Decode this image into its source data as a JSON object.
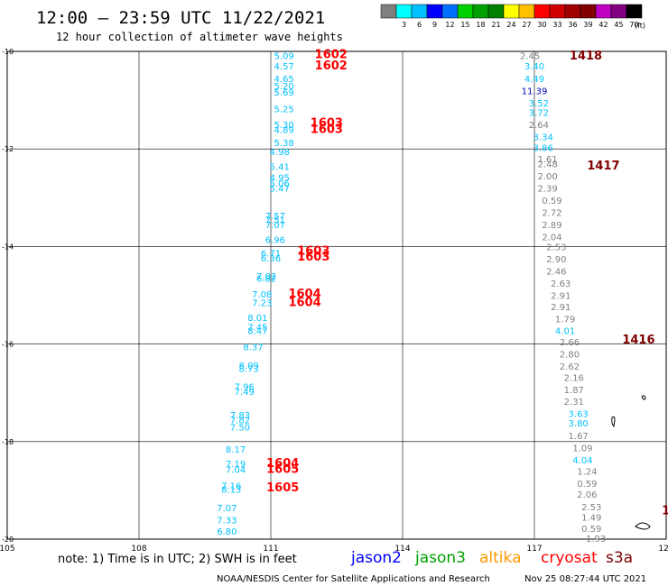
{
  "header": {
    "title": "12:00 – 23:59 UTC 11/22/2021",
    "subtitle": "12 hour collection of altimeter wave heights"
  },
  "legend": {
    "bins": [
      {
        "label": "",
        "color": "#7f7f7f"
      },
      {
        "label": "3",
        "color": "#00ffff"
      },
      {
        "label": "6",
        "color": "#00c0ff"
      },
      {
        "label": "9",
        "color": "#0000ff"
      },
      {
        "label": "12",
        "color": "#0070ff"
      },
      {
        "label": "15",
        "color": "#00d000"
      },
      {
        "label": "18",
        "color": "#00a000"
      },
      {
        "label": "21",
        "color": "#008000"
      },
      {
        "label": "24",
        "color": "#ffff00"
      },
      {
        "label": "27",
        "color": "#ffc000"
      },
      {
        "label": "30",
        "color": "#ff0000"
      },
      {
        "label": "33",
        "color": "#d00000"
      },
      {
        "label": "36",
        "color": "#a00000"
      },
      {
        "label": "39",
        "color": "#800000"
      },
      {
        "label": "42",
        "color": "#c000c0"
      },
      {
        "label": "45",
        "color": "#800080"
      },
      {
        "label": "70",
        "color": "#000000"
      }
    ],
    "unit": "(ft)"
  },
  "footer": {
    "note": "note:  1) Time is in UTC;  2) SWH is in feet",
    "satellites": [
      {
        "name": "jason2",
        "color": "#0000ff"
      },
      {
        "name": "jason3",
        "color": "#00a000"
      },
      {
        "name": "altika",
        "color": "#ff9900"
      },
      {
        "name": "cryosat",
        "color": "#ff0000"
      },
      {
        "name": "s3a",
        "color": "#800000"
      }
    ],
    "credit": "NOAA/NESDIS Center for Satellite Applications and Research",
    "timestamp": "Nov 25 08:27:44 UTC 2021"
  },
  "chart_data": {
    "type": "scatter",
    "xlim": [
      105,
      120
    ],
    "ylim": [
      -20,
      -10
    ],
    "xticks": [
      105,
      108,
      111,
      114,
      117,
      120
    ],
    "yticks": [
      -10,
      -12,
      -14,
      -16,
      -18,
      -20
    ],
    "xticklabels": [
      "105",
      "108",
      "111",
      "114",
      "117",
      "120"
    ],
    "yticklabels": [
      "-10",
      "-12",
      "-14",
      "-16",
      "-18",
      "-20"
    ],
    "grid": true,
    "series": [
      {
        "name": "jason3",
        "color": "#00c0ff",
        "points": [
          {
            "lon": 111.3,
            "lat": -10.08,
            "v": "5.09"
          },
          {
            "lon": 111.3,
            "lat": -10.3,
            "v": "4.57"
          },
          {
            "lon": 111.3,
            "lat": -10.55,
            "v": "4.65"
          },
          {
            "lon": 111.3,
            "lat": -10.7,
            "v": "5.20"
          },
          {
            "lon": 111.3,
            "lat": -10.83,
            "v": "5.69"
          },
          {
            "lon": 111.3,
            "lat": -11.17,
            "v": "5.25"
          },
          {
            "lon": 111.3,
            "lat": -11.5,
            "v": "5.30"
          },
          {
            "lon": 111.3,
            "lat": -11.6,
            "v": "4.89"
          },
          {
            "lon": 111.3,
            "lat": -11.87,
            "v": "5.38"
          },
          {
            "lon": 111.2,
            "lat": -12.05,
            "v": "4.98"
          },
          {
            "lon": 111.2,
            "lat": -12.36,
            "v": "5.41"
          },
          {
            "lon": 111.2,
            "lat": -12.58,
            "v": "4.95"
          },
          {
            "lon": 111.2,
            "lat": -12.7,
            "v": "5.06"
          },
          {
            "lon": 111.2,
            "lat": -12.8,
            "v": "5.47"
          },
          {
            "lon": 111.1,
            "lat": -13.36,
            "v": "7.57"
          },
          {
            "lon": 111.1,
            "lat": -13.45,
            "v": "7.51"
          },
          {
            "lon": 111.1,
            "lat": -13.55,
            "v": "7.07"
          },
          {
            "lon": 111.1,
            "lat": -13.85,
            "v": "6.96"
          },
          {
            "lon": 111.0,
            "lat": -14.13,
            "v": "6.71"
          },
          {
            "lon": 111.0,
            "lat": -14.23,
            "v": "6.36"
          },
          {
            "lon": 110.9,
            "lat": -14.6,
            "v": "7.02"
          },
          {
            "lon": 110.9,
            "lat": -14.65,
            "v": "6.82"
          },
          {
            "lon": 110.8,
            "lat": -14.97,
            "v": "7.08"
          },
          {
            "lon": 110.8,
            "lat": -15.15,
            "v": "7.23"
          },
          {
            "lon": 110.7,
            "lat": -15.45,
            "v": "8.01"
          },
          {
            "lon": 110.7,
            "lat": -15.65,
            "v": "7.45"
          },
          {
            "lon": 110.7,
            "lat": -15.72,
            "v": "8.47"
          },
          {
            "lon": 110.6,
            "lat": -16.05,
            "v": "8.37"
          },
          {
            "lon": 110.5,
            "lat": -16.43,
            "v": "8.09"
          },
          {
            "lon": 110.5,
            "lat": -16.5,
            "v": "8.73"
          },
          {
            "lon": 110.4,
            "lat": -16.87,
            "v": "7.96"
          },
          {
            "lon": 110.4,
            "lat": -16.97,
            "v": "7.49"
          },
          {
            "lon": 110.3,
            "lat": -17.45,
            "v": "7.83"
          },
          {
            "lon": 110.3,
            "lat": -17.55,
            "v": "7.82"
          },
          {
            "lon": 110.3,
            "lat": -17.7,
            "v": "7.50"
          },
          {
            "lon": 110.2,
            "lat": -18.15,
            "v": "8.17"
          },
          {
            "lon": 110.2,
            "lat": -18.45,
            "v": "7.19"
          },
          {
            "lon": 110.2,
            "lat": -18.57,
            "v": "7.04"
          },
          {
            "lon": 110.1,
            "lat": -18.9,
            "v": "7.16"
          },
          {
            "lon": 110.1,
            "lat": -18.97,
            "v": "8.13"
          },
          {
            "lon": 110.0,
            "lat": -19.35,
            "v": "7.07"
          },
          {
            "lon": 110.0,
            "lat": -19.6,
            "v": "7.33"
          },
          {
            "lon": 110.0,
            "lat": -19.83,
            "v": "6.80"
          }
        ]
      },
      {
        "name": "pass-2",
        "color": "#808080",
        "points": [
          {
            "lon": 116.9,
            "lat": -10.08,
            "v": "2.45"
          },
          {
            "lon": 117.0,
            "lat": -10.3,
            "v": "3.40",
            "color": "#00c0ff"
          },
          {
            "lon": 117.0,
            "lat": -10.55,
            "v": "4.49",
            "color": "#00c0ff"
          },
          {
            "lon": 117.0,
            "lat": -10.8,
            "v": "11.39",
            "color": "#0000c0"
          },
          {
            "lon": 117.1,
            "lat": -11.05,
            "v": "3.52",
            "color": "#00c0ff"
          },
          {
            "lon": 117.1,
            "lat": -11.25,
            "v": "3.72",
            "color": "#00c0ff"
          },
          {
            "lon": 117.1,
            "lat": -11.5,
            "v": "2.64"
          },
          {
            "lon": 117.2,
            "lat": -11.75,
            "v": "3.34",
            "color": "#00c0ff"
          },
          {
            "lon": 117.2,
            "lat": -11.97,
            "v": "3.86",
            "color": "#00c0ff"
          },
          {
            "lon": 117.3,
            "lat": -12.2,
            "v": "1.61"
          },
          {
            "lon": 117.3,
            "lat": -12.3,
            "v": "2.48"
          },
          {
            "lon": 117.3,
            "lat": -12.55,
            "v": "2.00"
          },
          {
            "lon": 117.3,
            "lat": -12.8,
            "v": "2.39"
          },
          {
            "lon": 117.4,
            "lat": -13.05,
            "v": "0.59"
          },
          {
            "lon": 117.4,
            "lat": -13.3,
            "v": "2.72"
          },
          {
            "lon": 117.4,
            "lat": -13.55,
            "v": "2.89"
          },
          {
            "lon": 117.4,
            "lat": -13.8,
            "v": "2.04"
          },
          {
            "lon": 117.5,
            "lat": -14.0,
            "v": "2.53"
          },
          {
            "lon": 117.5,
            "lat": -14.25,
            "v": "2.90"
          },
          {
            "lon": 117.5,
            "lat": -14.5,
            "v": "2.46"
          },
          {
            "lon": 117.6,
            "lat": -14.75,
            "v": "2.63"
          },
          {
            "lon": 117.6,
            "lat": -15.0,
            "v": "2.91"
          },
          {
            "lon": 117.6,
            "lat": -15.23,
            "v": "2.91"
          },
          {
            "lon": 117.7,
            "lat": -15.48,
            "v": "1.79"
          },
          {
            "lon": 117.7,
            "lat": -15.72,
            "v": "4.01",
            "color": "#00c0ff"
          },
          {
            "lon": 117.8,
            "lat": -15.95,
            "v": "2.66"
          },
          {
            "lon": 117.8,
            "lat": -16.2,
            "v": "2.80"
          },
          {
            "lon": 117.8,
            "lat": -16.45,
            "v": "2.62"
          },
          {
            "lon": 117.9,
            "lat": -16.68,
            "v": "2.16"
          },
          {
            "lon": 117.9,
            "lat": -16.93,
            "v": "1.87"
          },
          {
            "lon": 117.9,
            "lat": -17.17,
            "v": "2.31"
          },
          {
            "lon": 118.0,
            "lat": -17.42,
            "v": "3.63",
            "color": "#00c0ff"
          },
          {
            "lon": 118.0,
            "lat": -17.62,
            "v": "3.80",
            "color": "#00c0ff"
          },
          {
            "lon": 118.0,
            "lat": -17.87,
            "v": "1.67"
          },
          {
            "lon": 118.1,
            "lat": -18.12,
            "v": "1.09"
          },
          {
            "lon": 118.1,
            "lat": -18.37,
            "v": "4.04",
            "color": "#00c0ff"
          },
          {
            "lon": 118.2,
            "lat": -18.6,
            "v": "1.24"
          },
          {
            "lon": 118.2,
            "lat": -18.85,
            "v": "0.59"
          },
          {
            "lon": 118.2,
            "lat": -19.08,
            "v": "2.06"
          },
          {
            "lon": 118.3,
            "lat": -19.33,
            "v": "2.53"
          },
          {
            "lon": 118.3,
            "lat": -19.55,
            "v": "1.49"
          },
          {
            "lon": 118.3,
            "lat": -19.78,
            "v": "0.59"
          },
          {
            "lon": 118.4,
            "lat": -19.98,
            "v": "1.93"
          }
        ]
      }
    ],
    "time_labels": [
      {
        "lon": 112.0,
        "lat": -10.05,
        "text": "1602",
        "color": "#ff0000"
      },
      {
        "lon": 112.0,
        "lat": -10.28,
        "text": "1602",
        "color": "#ff0000"
      },
      {
        "lon": 111.9,
        "lat": -11.45,
        "text": "1603",
        "color": "#ff0000"
      },
      {
        "lon": 111.9,
        "lat": -11.58,
        "text": "1603",
        "color": "#ff0000"
      },
      {
        "lon": 111.6,
        "lat": -14.08,
        "text": "1603",
        "color": "#ff0000"
      },
      {
        "lon": 111.6,
        "lat": -14.2,
        "text": "1603",
        "color": "#ff0000"
      },
      {
        "lon": 111.4,
        "lat": -14.95,
        "text": "1604",
        "color": "#ff0000"
      },
      {
        "lon": 111.4,
        "lat": -15.13,
        "text": "1604",
        "color": "#ff0000"
      },
      {
        "lon": 110.9,
        "lat": -18.43,
        "text": "1604",
        "color": "#ff0000"
      },
      {
        "lon": 110.9,
        "lat": -18.55,
        "text": "1605",
        "color": "#ff0000"
      },
      {
        "lon": 110.9,
        "lat": -18.93,
        "text": "1605",
        "color": "#ff0000"
      },
      {
        "lon": 117.8,
        "lat": -10.07,
        "text": "1418",
        "color": "#800000"
      },
      {
        "lon": 118.2,
        "lat": -12.33,
        "text": "1417",
        "color": "#800000"
      },
      {
        "lon": 119.0,
        "lat": -15.9,
        "text": "1416",
        "color": "#800000"
      },
      {
        "lon": 119.9,
        "lat": -19.4,
        "text": "1",
        "color": "#800000"
      }
    ]
  }
}
